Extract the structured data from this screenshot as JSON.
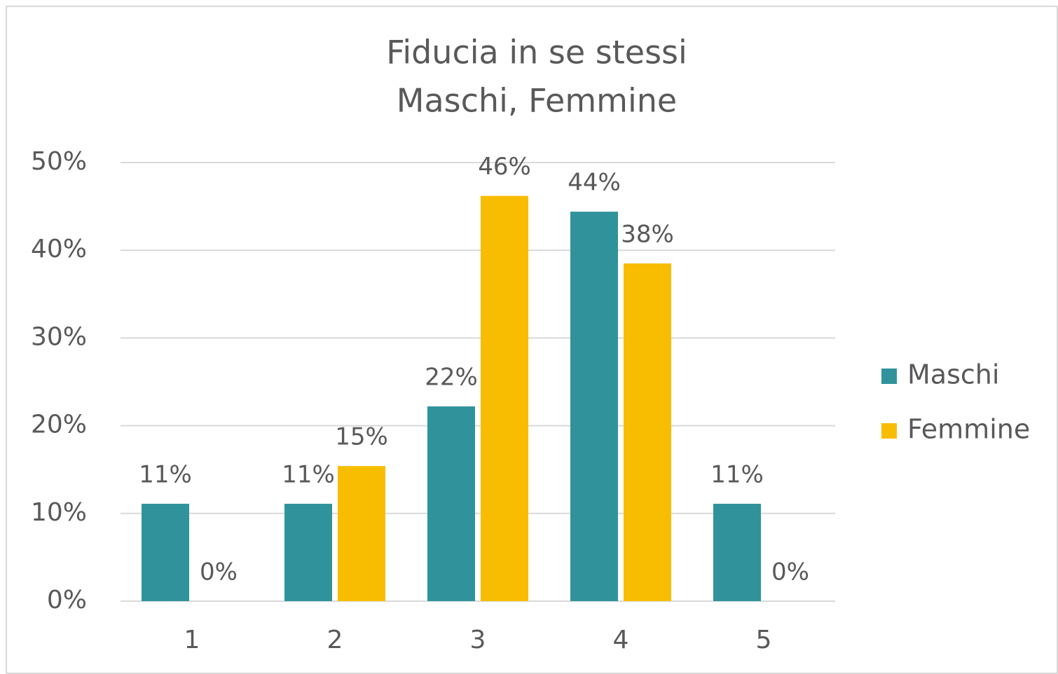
{
  "chart_data": {
    "type": "bar",
    "title": "Fiducia in se stessi",
    "subtitle": "Maschi, Femmine",
    "categories": [
      "1",
      "2",
      "3",
      "4",
      "5"
    ],
    "series": [
      {
        "name": "Maschi",
        "color": "#30939b",
        "values": [
          11.1,
          11.1,
          22.2,
          44.4,
          11.1
        ],
        "value_labels": [
          "11%",
          "11%",
          "22%",
          "44%",
          "11%"
        ]
      },
      {
        "name": "Femmine",
        "color": "#f8bd00",
        "values": [
          0,
          15.4,
          46.2,
          38.5,
          0
        ],
        "value_labels": [
          "0%",
          "15%",
          "46%",
          "38%",
          "0%"
        ]
      }
    ],
    "ylim": [
      0,
      50
    ],
    "yticks": [
      {
        "value": 0,
        "label": "0%"
      },
      {
        "value": 10,
        "label": "10%"
      },
      {
        "value": 20,
        "label": "20%"
      },
      {
        "value": 30,
        "label": "30%"
      },
      {
        "value": 40,
        "label": "40%"
      },
      {
        "value": 50,
        "label": "50%"
      }
    ],
    "grid": true,
    "legend": "right"
  }
}
